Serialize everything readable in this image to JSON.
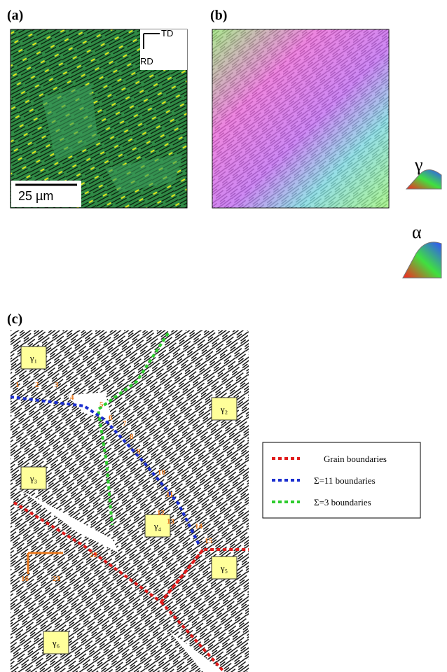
{
  "panels": {
    "a": {
      "label": "(a)",
      "axes": {
        "x": "TD",
        "y": "RD"
      },
      "scale_bar": "25 µm"
    },
    "b": {
      "label": "(b)",
      "keys": [
        "γ",
        "α"
      ]
    },
    "c": {
      "label": "(c)",
      "grains": [
        "γ₁",
        "γ₂",
        "γ₃",
        "γ₄",
        "γ₅",
        "γ₆"
      ],
      "points": [
        "1",
        "2",
        "3",
        "4",
        "5",
        "6",
        "7",
        "8",
        "9",
        "10",
        "11",
        "12",
        "13",
        "14",
        "15",
        "22",
        "16",
        "23"
      ],
      "legend": [
        "Grain boundaries",
        "Σ=11 boundaries",
        "Σ=3 boundaries"
      ]
    }
  }
}
